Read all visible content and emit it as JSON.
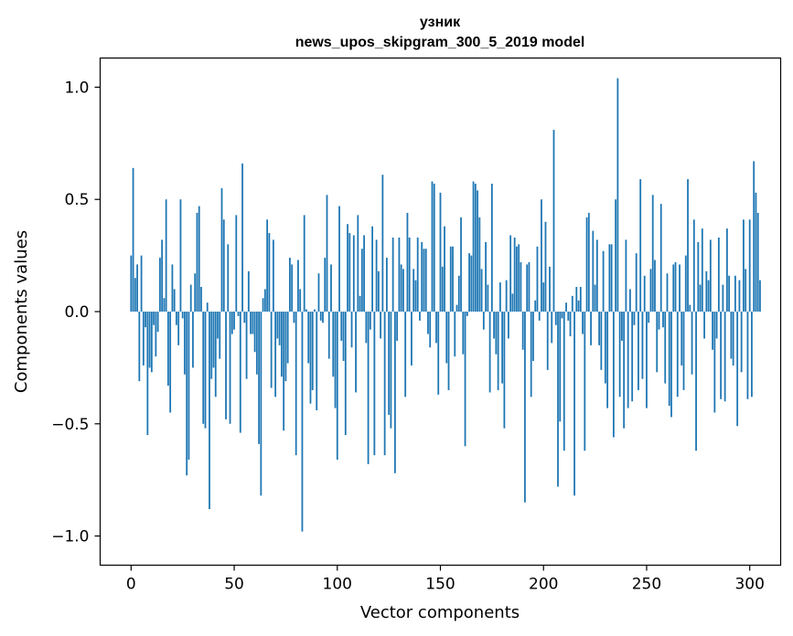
{
  "chart_data": {
    "type": "bar",
    "title": "узник",
    "subtitle": "news_upos_skipgram_300_5_2019 model",
    "xlabel": "Vector components",
    "ylabel": "Components values",
    "xlim": [
      -15,
      315
    ],
    "ylim": [
      -1.13,
      1.13
    ],
    "xticks": [
      0,
      50,
      100,
      150,
      200,
      250,
      300
    ],
    "yticks": [
      -1.0,
      -0.5,
      0.0,
      0.5,
      1.0
    ],
    "ytick_labels": [
      "−1.0",
      "−0.5",
      "0.0",
      "0.5",
      "1.0"
    ],
    "grid": false,
    "bar_color": "#1f77b4",
    "values": [
      0.25,
      0.64,
      0.15,
      0.21,
      -0.31,
      0.25,
      -0.24,
      -0.07,
      -0.55,
      -0.25,
      -0.27,
      -0.06,
      -0.2,
      -0.09,
      0.24,
      0.32,
      0.06,
      0.5,
      -0.33,
      -0.45,
      0.21,
      0.1,
      -0.06,
      -0.15,
      0.5,
      -0.03,
      -0.28,
      -0.73,
      -0.66,
      0.12,
      -0.25,
      0.17,
      0.44,
      0.47,
      0.11,
      -0.5,
      -0.52,
      0.04,
      -0.88,
      -0.3,
      -0.25,
      -0.38,
      -0.12,
      -0.21,
      0.55,
      0.41,
      -0.48,
      0.3,
      -0.5,
      -0.1,
      -0.08,
      0.43,
      -0.02,
      -0.54,
      0.66,
      -0.05,
      -0.3,
      0.18,
      -0.1,
      -0.1,
      -0.18,
      -0.28,
      -0.59,
      -0.82,
      0.06,
      0.1,
      0.41,
      0.35,
      -0.34,
      0.32,
      -0.38,
      -0.12,
      -0.15,
      -0.29,
      -0.53,
      -0.31,
      -0.23,
      0.24,
      0.21,
      -0.05,
      -0.64,
      0.23,
      0.1,
      -0.98,
      0.43,
      0.01,
      -0.23,
      -0.41,
      -0.35,
      0.01,
      -0.44,
      0.17,
      -0.04,
      -0.05,
      0.24,
      0.52,
      -0.21,
      0.21,
      -0.29,
      -0.43,
      -0.66,
      0.47,
      -0.13,
      -0.22,
      -0.55,
      0.39,
      0.35,
      -0.16,
      0.34,
      -0.36,
      0.43,
      0.07,
      0.28,
      0.34,
      -0.14,
      -0.68,
      -0.08,
      0.38,
      -0.64,
      0.32,
      0.18,
      -0.12,
      0.61,
      -0.64,
      0.24,
      -0.46,
      -0.52,
      0.33,
      -0.72,
      -0.13,
      0.33,
      0.21,
      0.19,
      -0.38,
      0.44,
      0.33,
      -0.24,
      0.19,
      0.14,
      0.33,
      -0.04,
      0.31,
      0.28,
      0.28,
      -0.1,
      -0.16,
      0.58,
      0.57,
      -0.14,
      -0.37,
      0.53,
      0.2,
      0.38,
      -0.23,
      -0.35,
      0.29,
      0.29,
      -0.2,
      0.03,
      0.16,
      0.42,
      -0.19,
      -0.6,
      -0.02,
      0.26,
      0.25,
      0.58,
      0.57,
      0.54,
      0.42,
      0.19,
      -0.08,
      0.31,
      0.12,
      -0.36,
      0.57,
      -0.12,
      -0.19,
      -0.35,
      0.13,
      -0.32,
      -0.52,
      0.14,
      -0.12,
      0.34,
      0.08,
      0.33,
      0.29,
      0.3,
      0.22,
      -0.17,
      -0.85,
      0.21,
      0.22,
      -0.38,
      -0.22,
      0.05,
      0.29,
      -0.04,
      0.5,
      0.13,
      0.4,
      -0.26,
      0.2,
      -0.14,
      0.81,
      -0.06,
      -0.78,
      -0.49,
      -0.03,
      -0.62,
      0.04,
      -0.04,
      -0.11,
      0.07,
      -0.82,
      0.11,
      0.05,
      0.11,
      -0.1,
      -0.62,
      0.42,
      0.44,
      -0.15,
      0.36,
      0.12,
      0.32,
      -0.15,
      -0.26,
      0.27,
      -0.32,
      -0.43,
      0.3,
      0.3,
      -0.56,
      0.5,
      1.04,
      -0.38,
      -0.13,
      -0.52,
      0.32,
      -0.43,
      0.1,
      -0.4,
      -0.06,
      0.26,
      -0.35,
      0.59,
      -0.3,
      0.16,
      -0.43,
      -0.05,
      0.19,
      0.52,
      0.23,
      -0.27,
      -0.08,
      0.48,
      -0.07,
      -0.32,
      0.17,
      -0.42,
      -0.47,
      0.21,
      0.22,
      -0.38,
      0.21,
      -0.24,
      -0.35,
      0.25,
      0.59,
      0.03,
      -0.28,
      0.41,
      -0.62,
      0.31,
      0.12,
      0.37,
      -0.12,
      0.18,
      0.14,
      0.32,
      -0.17,
      -0.45,
      -0.12,
      0.33,
      -0.39,
      0.12,
      -0.4,
      0.37,
      0.16,
      -0.21,
      -0.24,
      0.16,
      -0.51,
      0.14,
      -0.27,
      0.41,
      0.19,
      -0.39,
      0.41,
      -0.38,
      0.67,
      0.53,
      0.44,
      0.14
    ]
  }
}
